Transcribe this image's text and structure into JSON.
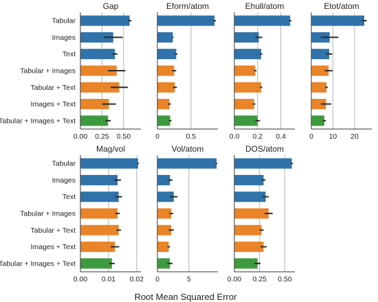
{
  "chart_data": {
    "type": "bar",
    "orientation": "horizontal",
    "xlabel": "Root Mean Squared Error",
    "categories": [
      "Tabular",
      "Images",
      "Text",
      "Tabular + Images",
      "Tabular + Text",
      "Images + Text",
      "Tabular + Images + Text"
    ],
    "category_colors": [
      "#2f73aa",
      "#2f73aa",
      "#2f73aa",
      "#e98429",
      "#e98429",
      "#e98429",
      "#3e9a3e"
    ],
    "grid": "vertical",
    "panels": [
      {
        "title": "Gap",
        "xlim": [
          0,
          0.7
        ],
        "ticks": [
          0,
          0.25,
          0.5
        ],
        "tick_labels": [
          "0.00",
          "0.25",
          "0.50"
        ],
        "values": [
          0.57,
          0.38,
          0.4,
          0.42,
          0.45,
          0.33,
          0.32
        ],
        "errors": [
          0.02,
          0.11,
          0.03,
          0.1,
          0.1,
          0.08,
          0.03
        ]
      },
      {
        "title": "Eform/atom",
        "xlim": [
          0,
          0.9
        ],
        "ticks": [
          0,
          0.5
        ],
        "tick_labels": [
          "0",
          "0.5"
        ],
        "values": [
          0.85,
          0.23,
          0.28,
          0.25,
          0.26,
          0.18,
          0.19
        ],
        "errors": [
          0.02,
          0.01,
          0.02,
          0.03,
          0.03,
          0.02,
          0.02
        ]
      },
      {
        "title": "Ehull/atom",
        "xlim": [
          0,
          0.52
        ],
        "ticks": [
          0,
          0.2,
          0.4
        ],
        "tick_labels": [
          "0.0",
          "0.2",
          "0.4"
        ],
        "values": [
          0.48,
          0.21,
          0.23,
          0.18,
          0.23,
          0.17,
          0.2
        ],
        "errors": [
          0.01,
          0.03,
          0.01,
          0.01,
          0.01,
          0.01,
          0.02
        ]
      },
      {
        "title": "Etot/atom",
        "xlim": [
          0,
          28
        ],
        "ticks": [
          0,
          10,
          20
        ],
        "tick_labels": [
          "0",
          "10",
          "20"
        ],
        "values": [
          24.5,
          8.5,
          8.3,
          8.0,
          7.0,
          6.8,
          6.0
        ],
        "errors": [
          1.2,
          4.0,
          1.4,
          1.8,
          0.6,
          2.4,
          0.7
        ]
      },
      {
        "title": "Mag/vol",
        "xlim": [
          0,
          0.0215
        ],
        "ticks": [
          0,
          0.01,
          0.02
        ],
        "tick_labels": [
          "0.00",
          "0.01",
          "0.02"
        ],
        "values": [
          0.0205,
          0.0132,
          0.0136,
          0.0132,
          0.0136,
          0.0123,
          0.0112
        ],
        "errors": [
          0.0003,
          0.0012,
          0.0012,
          0.0008,
          0.0008,
          0.0015,
          0.001
        ]
      },
      {
        "title": "Vol/atom",
        "xlim": [
          0,
          9.6
        ],
        "ticks": [
          0,
          5
        ],
        "tick_labels": [
          "0",
          "5"
        ],
        "values": [
          9.4,
          2.0,
          2.6,
          2.2,
          2.2,
          1.8,
          2.0
        ],
        "errors": [
          0.1,
          0.4,
          0.6,
          0.3,
          0.4,
          0.2,
          0.4
        ]
      },
      {
        "title": "DOS/atom",
        "xlim": [
          0,
          0.6
        ],
        "ticks": [
          0,
          0.25,
          0.5
        ],
        "tick_labels": [
          "0.00",
          "0.25",
          "0.50"
        ],
        "values": [
          0.57,
          0.29,
          0.31,
          0.34,
          0.27,
          0.29,
          0.23
        ],
        "errors": [
          0.01,
          0.02,
          0.03,
          0.04,
          0.02,
          0.03,
          0.03
        ]
      }
    ]
  }
}
